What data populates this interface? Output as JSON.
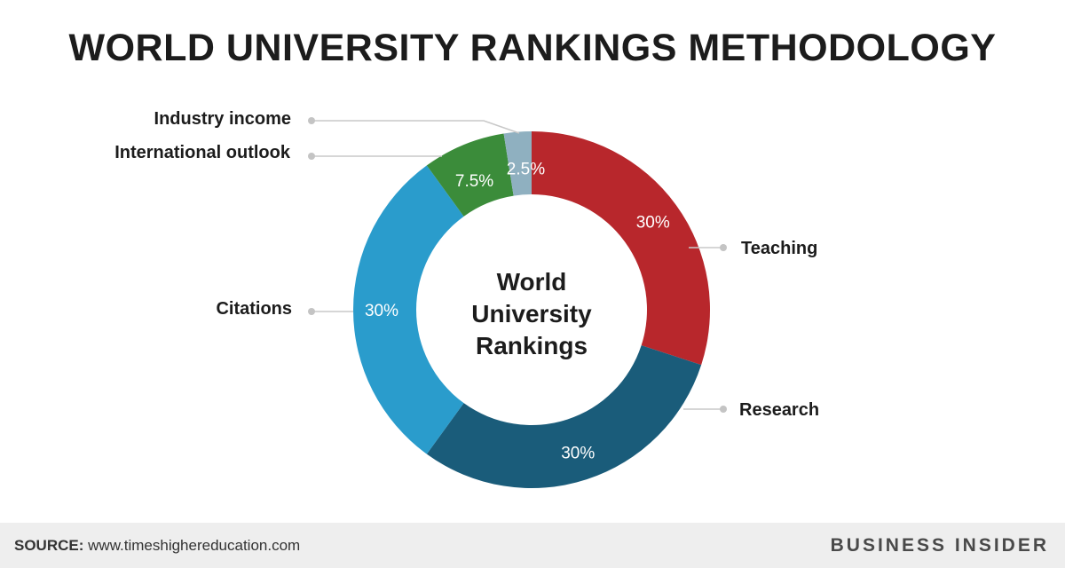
{
  "chart_data": {
    "type": "pie",
    "variant": "donut",
    "title": "WORLD UNIVERSITY RANKINGS METHODOLOGY",
    "center_label": [
      "World",
      "University",
      "Rankings"
    ],
    "slices": [
      {
        "name": "Teaching",
        "value": 30,
        "label": "30%",
        "color": "#b8272c"
      },
      {
        "name": "Research",
        "value": 30,
        "label": "30%",
        "color": "#1a5c7a"
      },
      {
        "name": "Citations",
        "value": 30,
        "label": "30%",
        "color": "#2a9ccc"
      },
      {
        "name": "International outlook",
        "value": 7.5,
        "label": "7.5%",
        "color": "#3b8c3a"
      },
      {
        "name": "Industry income",
        "value": 2.5,
        "label": "2.5%",
        "color": "#8fb0c0"
      }
    ],
    "start_angle": "12 o'clock",
    "direction": "clockwise"
  },
  "footer": {
    "source_label": "SOURCE:",
    "source_text": "www.timeshighereducation.com",
    "brand": "BUSINESS INSIDER"
  }
}
